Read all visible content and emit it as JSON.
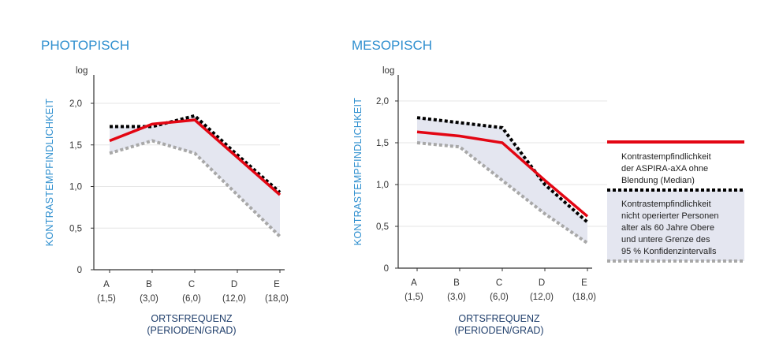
{
  "chart_data": [
    {
      "type": "line",
      "title": "PHOTOPISCH",
      "ylabel": "KONTRASTEMPFINDLICHKEIT",
      "yunit": "log",
      "xlabel": [
        "ORTSFREQUENZ",
        "(PERIODEN/GRAD)"
      ],
      "categories": [
        "A",
        "B",
        "C",
        "D",
        "E"
      ],
      "category_sublabels": [
        "(1,5)",
        "(3,0)",
        "(6,0)",
        "(12,0)",
        "(18,0)"
      ],
      "ylim": [
        0,
        2.0
      ],
      "yticks": [
        "0",
        "0,5",
        "1,0",
        "1,5",
        "2,0"
      ],
      "series": [
        {
          "role": "median",
          "values": [
            1.55,
            1.75,
            1.8,
            1.35,
            0.9
          ]
        },
        {
          "role": "upper",
          "values": [
            1.72,
            1.72,
            1.85,
            1.38,
            0.93
          ]
        },
        {
          "role": "lower",
          "values": [
            1.4,
            1.55,
            1.4,
            0.9,
            0.4
          ]
        }
      ]
    },
    {
      "type": "line",
      "title": "MESOPISCH",
      "ylabel": "KONTRASTEMPFINDLICHKEIT",
      "yunit": "log",
      "xlabel": [
        "ORTSFREQUENZ",
        "(PERIODEN/GRAD)"
      ],
      "categories": [
        "A",
        "B",
        "C",
        "D",
        "E"
      ],
      "category_sublabels": [
        "(1,5)",
        "(3,0)",
        "(6,0)",
        "(12,0)",
        "(18,0)"
      ],
      "ylim": [
        0,
        2.0
      ],
      "yticks": [
        "0",
        "0,5",
        "1,0",
        "1,5",
        "2,0"
      ],
      "series": [
        {
          "role": "median",
          "values": [
            1.63,
            1.58,
            1.5,
            1.05,
            0.62
          ]
        },
        {
          "role": "upper",
          "values": [
            1.8,
            1.74,
            1.68,
            1.0,
            0.55
          ]
        },
        {
          "role": "lower",
          "values": [
            1.5,
            1.45,
            1.05,
            0.65,
            0.3
          ]
        }
      ]
    }
  ],
  "legend": {
    "median_text": [
      "Kontrastempfindlichkeit",
      "der ASPIRA-aXA ohne",
      "Blendung (Median)"
    ],
    "band_text": [
      "Kontrastempfindlichkeit",
      "nicht operierter Personen",
      "alter als 60 Jahre Obere",
      "und untere Grenze des",
      "95 %  Konfidenzintervalls"
    ]
  },
  "colors": {
    "median": "#e30613",
    "upper": "#000000",
    "lower": "#a8a8a8",
    "band": "#e4e6f0",
    "title": "#2f8fcf",
    "xlabel": "#1f3e6b"
  }
}
